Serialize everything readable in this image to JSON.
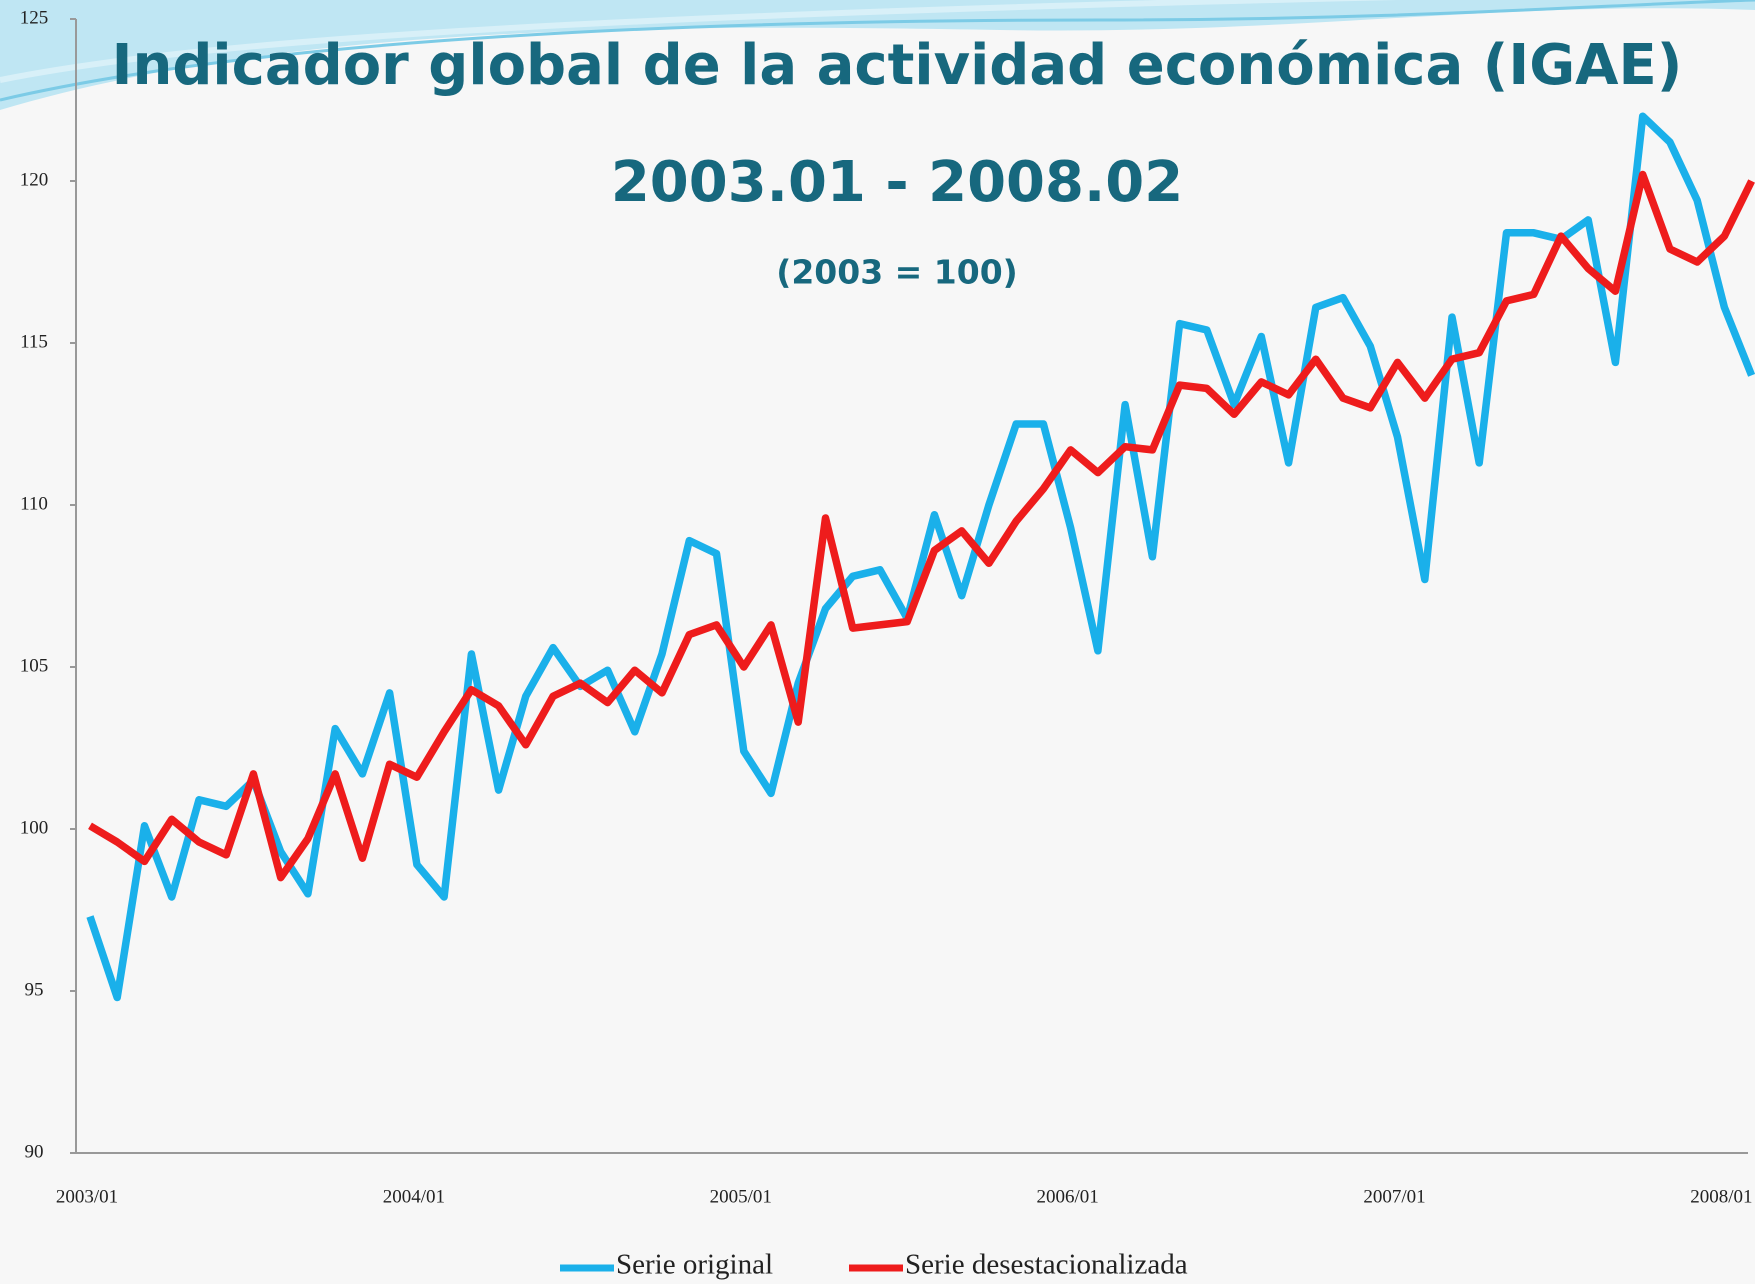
{
  "chart_data": {
    "type": "line",
    "title": "Indicador global de la actividad económica (IGAE)",
    "subtitle": "2003.01 - 2008.02",
    "annotations": [
      "(2003 = 100)"
    ],
    "categories": [
      "2003/01",
      null,
      null,
      null,
      null,
      null,
      null,
      null,
      null,
      null,
      null,
      null,
      "2004/01",
      null,
      null,
      null,
      null,
      null,
      null,
      null,
      null,
      null,
      null,
      null,
      "2005/01",
      null,
      null,
      null,
      null,
      null,
      null,
      null,
      null,
      null,
      null,
      null,
      "2006/01",
      null,
      null,
      null,
      null,
      null,
      null,
      null,
      null,
      null,
      null,
      null,
      "2007/01",
      null,
      null,
      null,
      null,
      null,
      null,
      null,
      null,
      null,
      null,
      null,
      "2008/01",
      null
    ],
    "series": [
      {
        "name": "Serie original",
        "color": "#1ab0ea",
        "values": [
          97.3,
          94.8,
          100.1,
          97.9,
          100.9,
          100.7,
          101.5,
          99.3,
          98.0,
          103.1,
          101.7,
          104.2,
          98.9,
          97.9,
          105.4,
          101.2,
          104.1,
          105.6,
          104.4,
          104.9,
          103.0,
          105.4,
          108.9,
          108.5,
          102.4,
          101.1,
          104.5,
          106.8,
          107.8,
          108.0,
          106.5,
          109.7,
          107.2,
          110.0,
          112.5,
          112.5,
          109.3,
          105.5,
          113.1,
          108.4,
          115.6,
          115.4,
          113.1,
          115.2,
          111.3,
          116.1,
          116.4,
          114.9,
          112.1,
          107.7,
          115.8,
          111.3,
          118.4,
          118.4,
          118.2,
          118.8,
          114.4,
          122.0,
          121.2,
          119.4,
          116.1,
          114.0
        ]
      },
      {
        "name": "Serie desestacionalizada",
        "color": "#ee1c1c",
        "values": [
          100.1,
          99.6,
          99.0,
          100.3,
          99.6,
          99.2,
          101.7,
          98.5,
          99.7,
          101.7,
          99.1,
          102.0,
          101.6,
          103.0,
          104.3,
          103.8,
          102.6,
          104.1,
          104.5,
          103.9,
          104.9,
          104.2,
          106.0,
          106.3,
          105.0,
          106.3,
          103.3,
          109.6,
          106.2,
          106.3,
          106.4,
          108.6,
          109.2,
          108.2,
          109.5,
          110.5,
          111.7,
          111.0,
          111.8,
          111.7,
          113.7,
          113.6,
          112.8,
          113.8,
          113.4,
          114.5,
          113.3,
          113.0,
          114.4,
          113.3,
          114.5,
          114.7,
          116.3,
          116.5,
          118.3,
          117.3,
          116.6,
          120.2,
          117.9,
          117.5,
          118.3,
          120.0
        ]
      }
    ],
    "ylim": [
      90,
      125
    ],
    "yticks": [
      90,
      95,
      100,
      105,
      110,
      115,
      120,
      125
    ]
  }
}
